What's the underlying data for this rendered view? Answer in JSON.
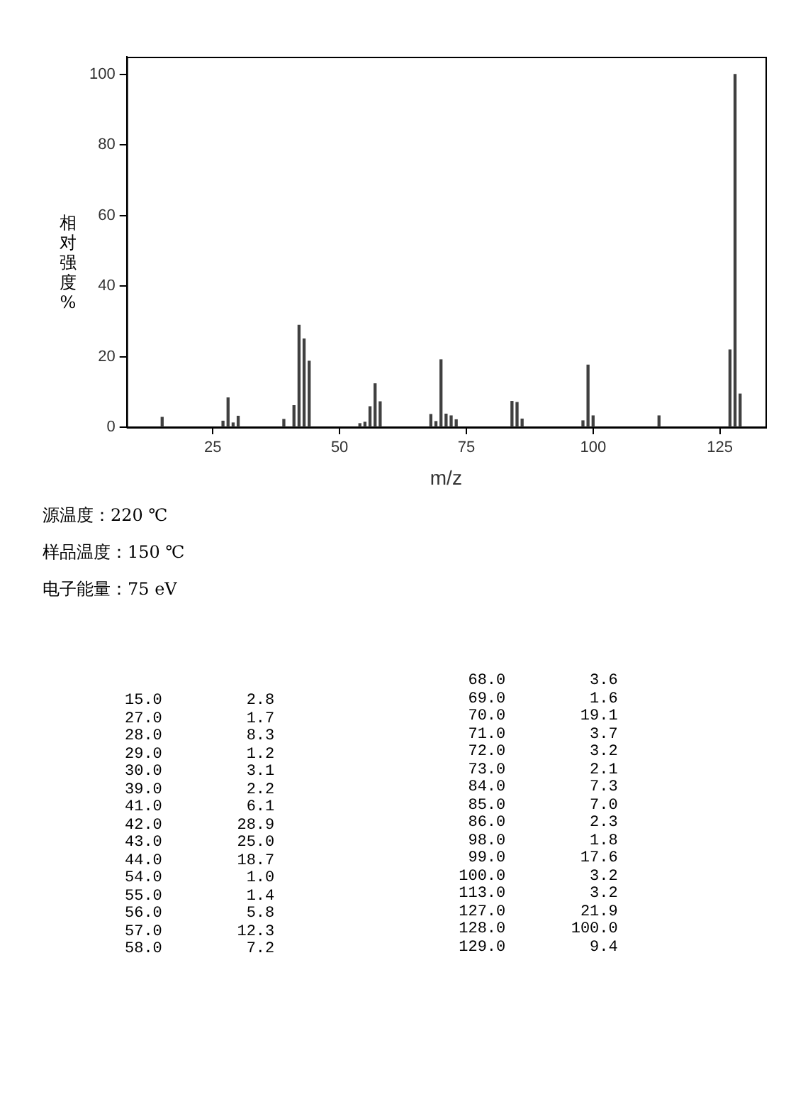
{
  "chart_data": [
    {
      "type": "bar",
      "xlabel": "m/z",
      "ylabel": "相对强度%",
      "color": "#404040",
      "x": [
        15,
        27,
        28,
        29,
        30,
        39,
        41,
        42,
        43,
        44,
        54,
        55,
        56,
        57,
        58,
        68,
        69,
        70,
        71,
        72,
        73,
        84,
        85,
        86,
        98,
        99,
        100,
        113,
        127,
        128,
        129
      ],
      "values": [
        2.8,
        1.7,
        8.3,
        1.2,
        3.1,
        2.2,
        6.1,
        28.9,
        25.0,
        18.7,
        1.0,
        1.4,
        5.8,
        12.3,
        7.2,
        3.6,
        1.6,
        19.1,
        3.7,
        3.2,
        2.1,
        7.3,
        7.0,
        2.3,
        1.8,
        17.6,
        3.2,
        3.2,
        21.9,
        100.0,
        9.4
      ],
      "xlim": [
        8,
        134
      ],
      "xticks": [
        25,
        50,
        75,
        100,
        125
      ],
      "ylim": [
        0,
        105
      ],
      "yticks": [
        0,
        20,
        40,
        60,
        80,
        100
      ],
      "annotations": [
        "源温度：220 ℃",
        "样品温度：150 ℃",
        "电子能量：75 eV"
      ]
    },
    {
      "type": "other",
      "annotations": [
        "15.0         2.8",
        "27.0         1.7",
        "28.0         8.3",
        "29.0         1.2",
        "30.0         3.1",
        "39.0         2.2",
        "41.0         6.1",
        "42.0        28.9",
        "43.0        25.0",
        "44.0        18.7",
        "54.0         1.0",
        "55.0         1.4",
        "56.0         5.8",
        "57.0        12.3",
        "58.0         7.2",
        "68.0         3.6",
        "69.0         1.6",
        "70.0        19.1",
        "71.0         3.7",
        "72.0         3.2",
        "73.0         2.1",
        "84.0         7.3",
        "85.0         7.0",
        "86.0         2.3",
        "98.0         1.8",
        "99.0        17.6",
        "100.0         3.2",
        "113.0         3.2",
        "127.0        21.9",
        "128.0       100.0",
        "129.0         9.4"
      ]
    }
  ]
}
